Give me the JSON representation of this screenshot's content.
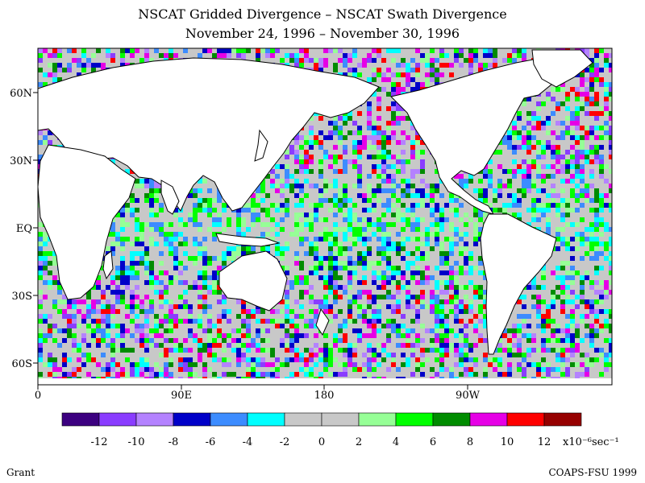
{
  "title": "NSCAT Gridded Divergence – NSCAT Swath Divergence",
  "subtitle": "November 24, 1996 – November 30, 1996",
  "lat_labels": [
    "60N",
    "30N",
    "EQ",
    "30S",
    "60S"
  ],
  "lon_labels": [
    "0",
    "90E",
    "180",
    "90W"
  ],
  "colorbar": {
    "colors": [
      "#3c0080",
      "#8a3cff",
      "#b482ff",
      "#0000c8",
      "#3c8cff",
      "#00ffff",
      "#c8c8c8",
      "#c8c8c8",
      "#96ff96",
      "#00ff00",
      "#008c00",
      "#e600e6",
      "#ff0000",
      "#960000"
    ],
    "tick_labels": [
      "-12",
      "-10",
      "-8",
      "-6",
      "-4",
      "-2",
      "0",
      "2",
      "4",
      "6",
      "8",
      "10",
      "12"
    ],
    "units": "x10⁻⁶sec⁻¹"
  },
  "credit_left": "Grant",
  "credit_right": "COAPS-FSU 1999",
  "colors": {
    "land": "#ffffff",
    "background_field": "#c8c8c8",
    "coast": "#000000"
  }
}
